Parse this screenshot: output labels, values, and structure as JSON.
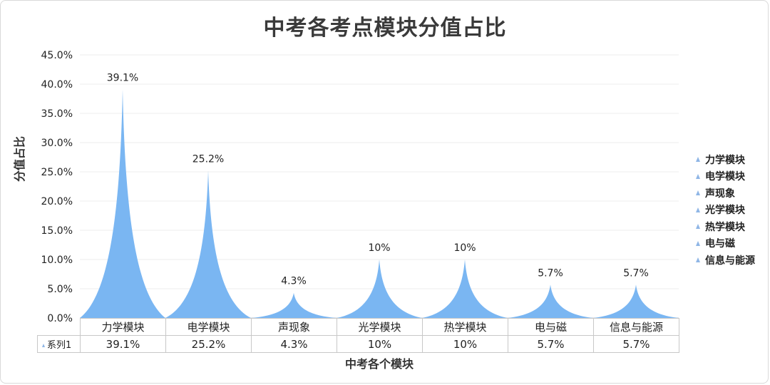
{
  "chart_data": {
    "type": "bar",
    "title": "中考各考点模块分值占比",
    "ylabel": "分值占比",
    "xlabel": "中考各个模块",
    "categories": [
      "力学模块",
      "电学模块",
      "声现象",
      "光学模块",
      "热学模块",
      "电与磁",
      "信息与能源"
    ],
    "values": [
      39.1,
      25.2,
      4.3,
      10,
      10,
      5.7,
      5.7
    ],
    "data_labels": [
      "39.1%",
      "25.2%",
      "4.3%",
      "10%",
      "10%",
      "5.7%",
      "5.7%"
    ],
    "ylim": [
      0,
      45
    ],
    "yticks": [
      "0.0%",
      "5.0%",
      "10.0%",
      "15.0%",
      "20.0%",
      "25.0%",
      "30.0%",
      "35.0%",
      "40.0%",
      "45.0%"
    ],
    "grid": true,
    "legend_position": "right",
    "series": [
      {
        "name": "系列1",
        "values": [
          39.1,
          25.2,
          4.3,
          10,
          10,
          5.7,
          5.7
        ]
      }
    ],
    "bar_color": "#7ab6f2"
  }
}
